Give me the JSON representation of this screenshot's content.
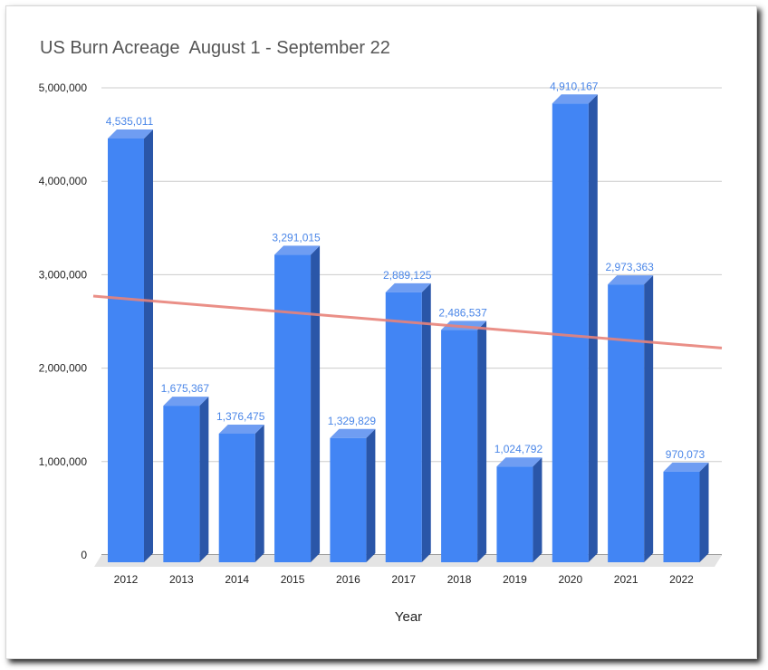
{
  "chart_data": {
    "type": "bar",
    "title": "US Burn Acreage  August 1 - September 22",
    "xlabel": "Year",
    "ylabel": "",
    "categories": [
      "2012",
      "2013",
      "2014",
      "2015",
      "2016",
      "2017",
      "2018",
      "2019",
      "2020",
      "2021",
      "2022"
    ],
    "values": [
      4535011,
      1675367,
      1376475,
      3291015,
      1329829,
      2889125,
      2486537,
      1024792,
      4910167,
      2973363,
      970073
    ],
    "data_labels": [
      "4,535,011",
      "1,675,367",
      "1,376,475",
      "3,291,015",
      "1,329,829",
      "2,889,125",
      "2,486,537",
      "1,024,792",
      "4,910,167",
      "2,973,363",
      "970,073"
    ],
    "ylim": [
      0,
      5000000
    ],
    "y_ticks": [
      0,
      1000000,
      2000000,
      3000000,
      4000000,
      5000000
    ],
    "y_tick_labels": [
      "0",
      "1,000,000",
      "2,000,000",
      "3,000,000",
      "4,000,000",
      "5,000,000"
    ],
    "trendline": {
      "type": "linear",
      "color": "#e8837a"
    },
    "grid": true,
    "style": "3d",
    "colors": {
      "bar": "#4285f4",
      "bar_side": "#2a56a8",
      "bar_top": "#6f9df2",
      "data_label": "#4a86e8",
      "trendline": "#e8837a"
    }
  }
}
